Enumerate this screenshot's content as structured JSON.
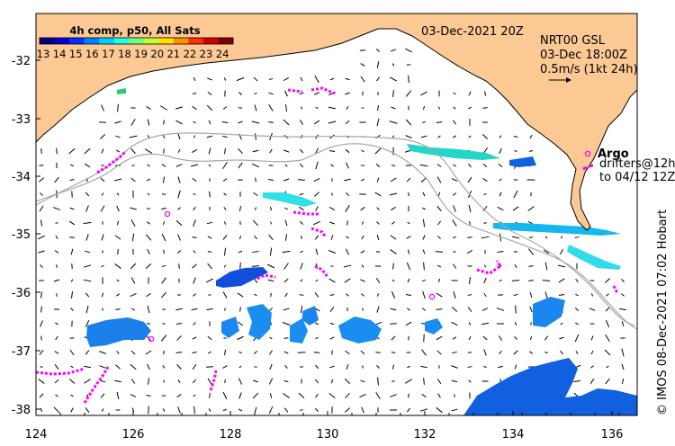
{
  "colorbar": {
    "title": "4h comp, p50, All Sats",
    "ticks": [
      "13",
      "14",
      "15",
      "16",
      "17",
      "18",
      "19",
      "20",
      "21",
      "22",
      "23",
      "24"
    ],
    "colors": [
      "#00007f",
      "#0000d0",
      "#0030ff",
      "#0080ff",
      "#00d0ff",
      "#20ffdd",
      "#70ff80",
      "#c0ff30",
      "#ffe000",
      "#ff9000",
      "#ff3000",
      "#d00000",
      "#800000"
    ]
  },
  "header": {
    "date": "03-Dec-2021 20Z",
    "source": "NRT00 GSL",
    "time": "03-Dec 18:00Z",
    "scale": "0.5m/s (1kt 24h)"
  },
  "legend": {
    "argo": "Argo",
    "drifters_1": "drifters@12h",
    "drifters_2": "to 04/12 12Z"
  },
  "credit": "© IMOS 08-Dec-2021 07:02 Hobart",
  "axes": {
    "x_ticks": [
      "124",
      "126",
      "128",
      "130",
      "132",
      "134",
      "136"
    ],
    "y_ticks": [
      "-32",
      "-33",
      "-34",
      "-35",
      "-36",
      "-37",
      "-38"
    ]
  },
  "colors": {
    "land": "#fcc994",
    "drifter": "#ff00ff",
    "bathymetry": "#a0a0a0"
  }
}
